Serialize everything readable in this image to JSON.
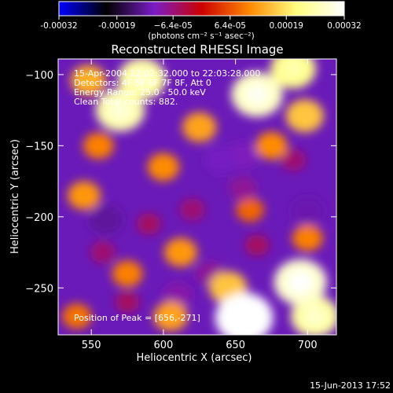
{
  "chart_data": {
    "type": "heatmap",
    "title": "Reconstructed RHESSI Image",
    "xlabel": "Heliocentric X (arcsec)",
    "ylabel": "Heliocentric Y (arcsec)",
    "xlim": [
      527,
      720
    ],
    "ylim": [
      -283,
      -89
    ],
    "x_ticks": [
      550,
      600,
      650,
      700
    ],
    "y_ticks": [
      -100,
      -150,
      -200,
      -250
    ],
    "x_tick_labels": [
      "550",
      "600",
      "650",
      "700"
    ],
    "y_tick_labels": [
      "−100",
      "−150",
      "−200",
      "−250"
    ],
    "colorbar": {
      "range": [
        -0.00032,
        0.00032
      ],
      "tick_values": [
        -0.00032,
        -0.00019,
        -6.4e-05,
        6.4e-05,
        0.00019,
        0.00032
      ],
      "tick_labels": [
        "-0.00032",
        "-0.00019",
        "−6.4e-05",
        "6.4e-05",
        "0.00019",
        "0.00032"
      ],
      "units_label": "(photons cm⁻² s⁻¹ asec⁻²)",
      "colormap": [
        "#0000ff",
        "#000000",
        "#7a1cc8",
        "#cc0000",
        "#ff8800",
        "#ffff80",
        "#ffffff"
      ]
    },
    "annotations": [
      "15-Apr-2004 22:02:32.000 to 22:03:28.000",
      "Detectors: 4F 5F 6F 7F 8F, Att 0",
      "Energy Range: 25.0 - 50.0 keV",
      "Clean   Total counts: 882."
    ],
    "peak_label": "Position of Peak = [656,-271]",
    "peak": [
      656,
      -271
    ],
    "intensity_blobs": [
      {
        "x": 570,
        "y": -125,
        "value": 0.00025
      },
      {
        "x": 585,
        "y": -103,
        "value": 0.00024
      },
      {
        "x": 548,
        "y": -104,
        "value": 0.00014
      },
      {
        "x": 665,
        "y": -114,
        "value": 0.00027
      },
      {
        "x": 690,
        "y": -96,
        "value": 0.00022
      },
      {
        "x": 698,
        "y": -129,
        "value": 0.00016
      },
      {
        "x": 625,
        "y": -137,
        "value": 0.00013
      },
      {
        "x": 600,
        "y": -165,
        "value": 0.00011
      },
      {
        "x": 555,
        "y": -150,
        "value": 0.0001
      },
      {
        "x": 675,
        "y": -150,
        "value": 0.00011
      },
      {
        "x": 695,
        "y": -246,
        "value": 0.00028
      },
      {
        "x": 705,
        "y": -270,
        "value": 0.00024
      },
      {
        "x": 656,
        "y": -271,
        "value": 0.00032
      },
      {
        "x": 645,
        "y": -250,
        "value": 0.00016
      },
      {
        "x": 612,
        "y": -225,
        "value": 0.00012
      },
      {
        "x": 575,
        "y": -240,
        "value": 0.0001
      },
      {
        "x": 545,
        "y": -185,
        "value": 0.00012
      },
      {
        "x": 700,
        "y": -215,
        "value": 0.0001
      },
      {
        "x": 660,
        "y": -195,
        "value": 8e-05
      },
      {
        "x": 540,
        "y": -270,
        "value": 9e-05
      },
      {
        "x": 605,
        "y": -270,
        "value": 0.00013
      },
      {
        "x": 590,
        "y": -205,
        "value": -5e-05
      },
      {
        "x": 560,
        "y": -202,
        "value": -0.00013
      },
      {
        "x": 640,
        "y": -160,
        "value": -0.00011
      },
      {
        "x": 655,
        "y": -180,
        "value": -8e-05
      },
      {
        "x": 655,
        "y": -157,
        "value": -0.0001
      },
      {
        "x": 700,
        "y": -196,
        "value": -0.00012
      },
      {
        "x": 690,
        "y": -160,
        "value": -6e-05
      },
      {
        "x": 620,
        "y": -195,
        "value": -6e-05
      },
      {
        "x": 632,
        "y": -240,
        "value": -8e-05
      },
      {
        "x": 610,
        "y": -255,
        "value": -9e-05
      },
      {
        "x": 575,
        "y": -260,
        "value": -5e-05
      },
      {
        "x": 558,
        "y": -225,
        "value": -6e-05
      },
      {
        "x": 665,
        "y": -220,
        "value": -5e-05
      }
    ]
  },
  "footer": {
    "date": "15-Jun-2013 17:52"
  }
}
